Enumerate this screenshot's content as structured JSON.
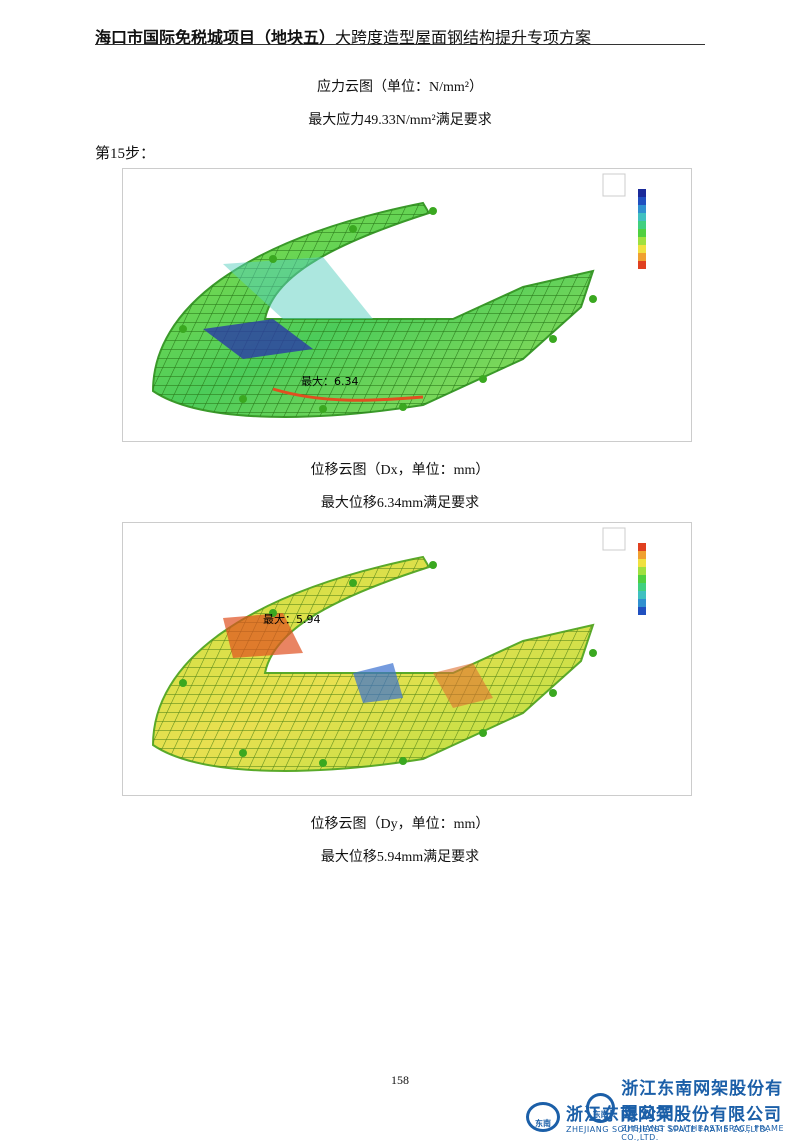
{
  "header": {
    "title_bold": "海口市国际免税城项目（地块五）",
    "title_rest": "大跨度造型屋面钢结构提升专项方案"
  },
  "sections": [
    {
      "caption": "应力云图（单位：N/mm²）",
      "note": "最大应力49.33N/mm²满足要求"
    }
  ],
  "step": "第15步：",
  "figures": [
    {
      "max_label": "最大：6.34",
      "caption": "位移云图（Dx，单位：mm）",
      "note": "最大位移6.34mm满足要求"
    },
    {
      "max_label": "最大：5.94",
      "caption": "位移云图（Dy，单位：mm）",
      "note": "最大位移5.94mm满足要求"
    }
  ],
  "page_number": "158",
  "footer": {
    "logos": [
      {
        "mark": "东南",
        "name": "浙江东南网架股份有限公司",
        "english": "ZHEJIANG SOUTHEAST SPACE FRAME CO.,LTD."
      },
      {
        "mark": "东南",
        "name": "浙江东南网架股份有限公司",
        "english": "ZHEJIANG SOUTHEAST SPACE FRAME CO.,LTD."
      }
    ]
  }
}
